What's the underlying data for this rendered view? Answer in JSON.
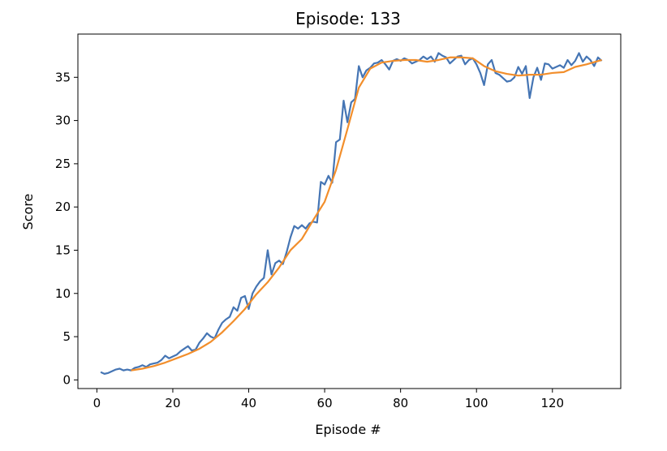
{
  "chart_data": {
    "type": "line",
    "title": "Episode: 133",
    "xlabel": "Episode #",
    "ylabel": "Score",
    "xlim": [
      -5,
      138
    ],
    "ylim": [
      -1,
      40
    ],
    "xticks": [
      0,
      20,
      40,
      60,
      80,
      100,
      120
    ],
    "yticks": [
      0,
      5,
      10,
      15,
      20,
      25,
      30,
      35
    ],
    "grid": false,
    "series": [
      {
        "color": "#4575b4",
        "x": [
          1,
          2,
          3,
          4,
          5,
          6,
          7,
          8,
          9,
          10,
          11,
          12,
          13,
          14,
          15,
          16,
          17,
          18,
          19,
          20,
          21,
          22,
          23,
          24,
          25,
          26,
          27,
          28,
          29,
          30,
          31,
          32,
          33,
          34,
          35,
          36,
          37,
          38,
          39,
          40,
          41,
          42,
          43,
          44,
          45,
          46,
          47,
          48,
          49,
          50,
          51,
          52,
          53,
          54,
          55,
          56,
          57,
          58,
          59,
          60,
          61,
          62,
          63,
          64,
          65,
          66,
          67,
          68,
          69,
          70,
          71,
          72,
          73,
          74,
          75,
          76,
          77,
          78,
          79,
          80,
          81,
          82,
          83,
          84,
          85,
          86,
          87,
          88,
          89,
          90,
          91,
          92,
          93,
          94,
          95,
          96,
          97,
          98,
          99,
          100,
          101,
          102,
          103,
          104,
          105,
          106,
          107,
          108,
          109,
          110,
          111,
          112,
          113,
          114,
          115,
          116,
          117,
          118,
          119,
          120,
          121,
          122,
          123,
          124,
          125,
          126,
          127,
          128,
          129,
          130,
          131,
          132,
          133
        ],
        "values": [
          0.9,
          0.7,
          0.8,
          1.0,
          1.2,
          1.3,
          1.1,
          1.2,
          1.1,
          1.4,
          1.5,
          1.7,
          1.5,
          1.8,
          1.9,
          2.0,
          2.3,
          2.8,
          2.5,
          2.7,
          2.9,
          3.3,
          3.6,
          3.9,
          3.4,
          3.5,
          4.3,
          4.8,
          5.4,
          5.0,
          4.8,
          5.8,
          6.6,
          7.0,
          7.3,
          8.4,
          8.0,
          9.5,
          9.7,
          8.2,
          10.0,
          10.8,
          11.4,
          11.8,
          15.0,
          12.2,
          13.5,
          13.8,
          13.4,
          14.8,
          16.5,
          17.8,
          17.5,
          17.9,
          17.5,
          18.1,
          18.3,
          18.2,
          22.9,
          22.6,
          23.6,
          22.8,
          27.5,
          27.8,
          32.3,
          29.8,
          32.1,
          32.5,
          36.3,
          35.0,
          35.8,
          36.1,
          36.6,
          36.7,
          37.0,
          36.5,
          35.9,
          36.9,
          37.1,
          36.9,
          37.2,
          37.0,
          36.6,
          36.8,
          37.0,
          37.4,
          37.1,
          37.4,
          36.8,
          37.8,
          37.5,
          37.3,
          36.6,
          37.0,
          37.4,
          37.5,
          36.5,
          37.0,
          37.2,
          36.5,
          35.5,
          34.1,
          36.5,
          37.0,
          35.5,
          35.3,
          34.9,
          34.5,
          34.6,
          35.0,
          36.2,
          35.4,
          36.3,
          32.6,
          35.0,
          36.1,
          34.7,
          36.6,
          36.5,
          36.0,
          36.2,
          36.4,
          36.1,
          37.0,
          36.4,
          36.9,
          37.8,
          36.8,
          37.4,
          37.0,
          36.3,
          37.3,
          36.9
        ]
      },
      {
        "color": "#f28e2b",
        "x": [
          9,
          12,
          15,
          18,
          21,
          24,
          27,
          30,
          33,
          36,
          39,
          42,
          45,
          48,
          51,
          54,
          57,
          60,
          63,
          66,
          69,
          72,
          75,
          78,
          81,
          84,
          87,
          90,
          93,
          96,
          99,
          102,
          105,
          108,
          111,
          114,
          117,
          120,
          123,
          126,
          129,
          133
        ],
        "values": [
          1.1,
          1.3,
          1.6,
          2.0,
          2.5,
          3.0,
          3.6,
          4.4,
          5.5,
          6.8,
          8.2,
          9.9,
          11.3,
          13.0,
          15.0,
          16.3,
          18.5,
          20.6,
          24.3,
          29.0,
          33.8,
          36.0,
          36.7,
          36.9,
          37.0,
          37.0,
          36.8,
          37.0,
          37.3,
          37.3,
          37.2,
          36.3,
          35.7,
          35.4,
          35.2,
          35.3,
          35.3,
          35.5,
          35.6,
          36.2,
          36.5,
          37.0
        ]
      }
    ]
  }
}
